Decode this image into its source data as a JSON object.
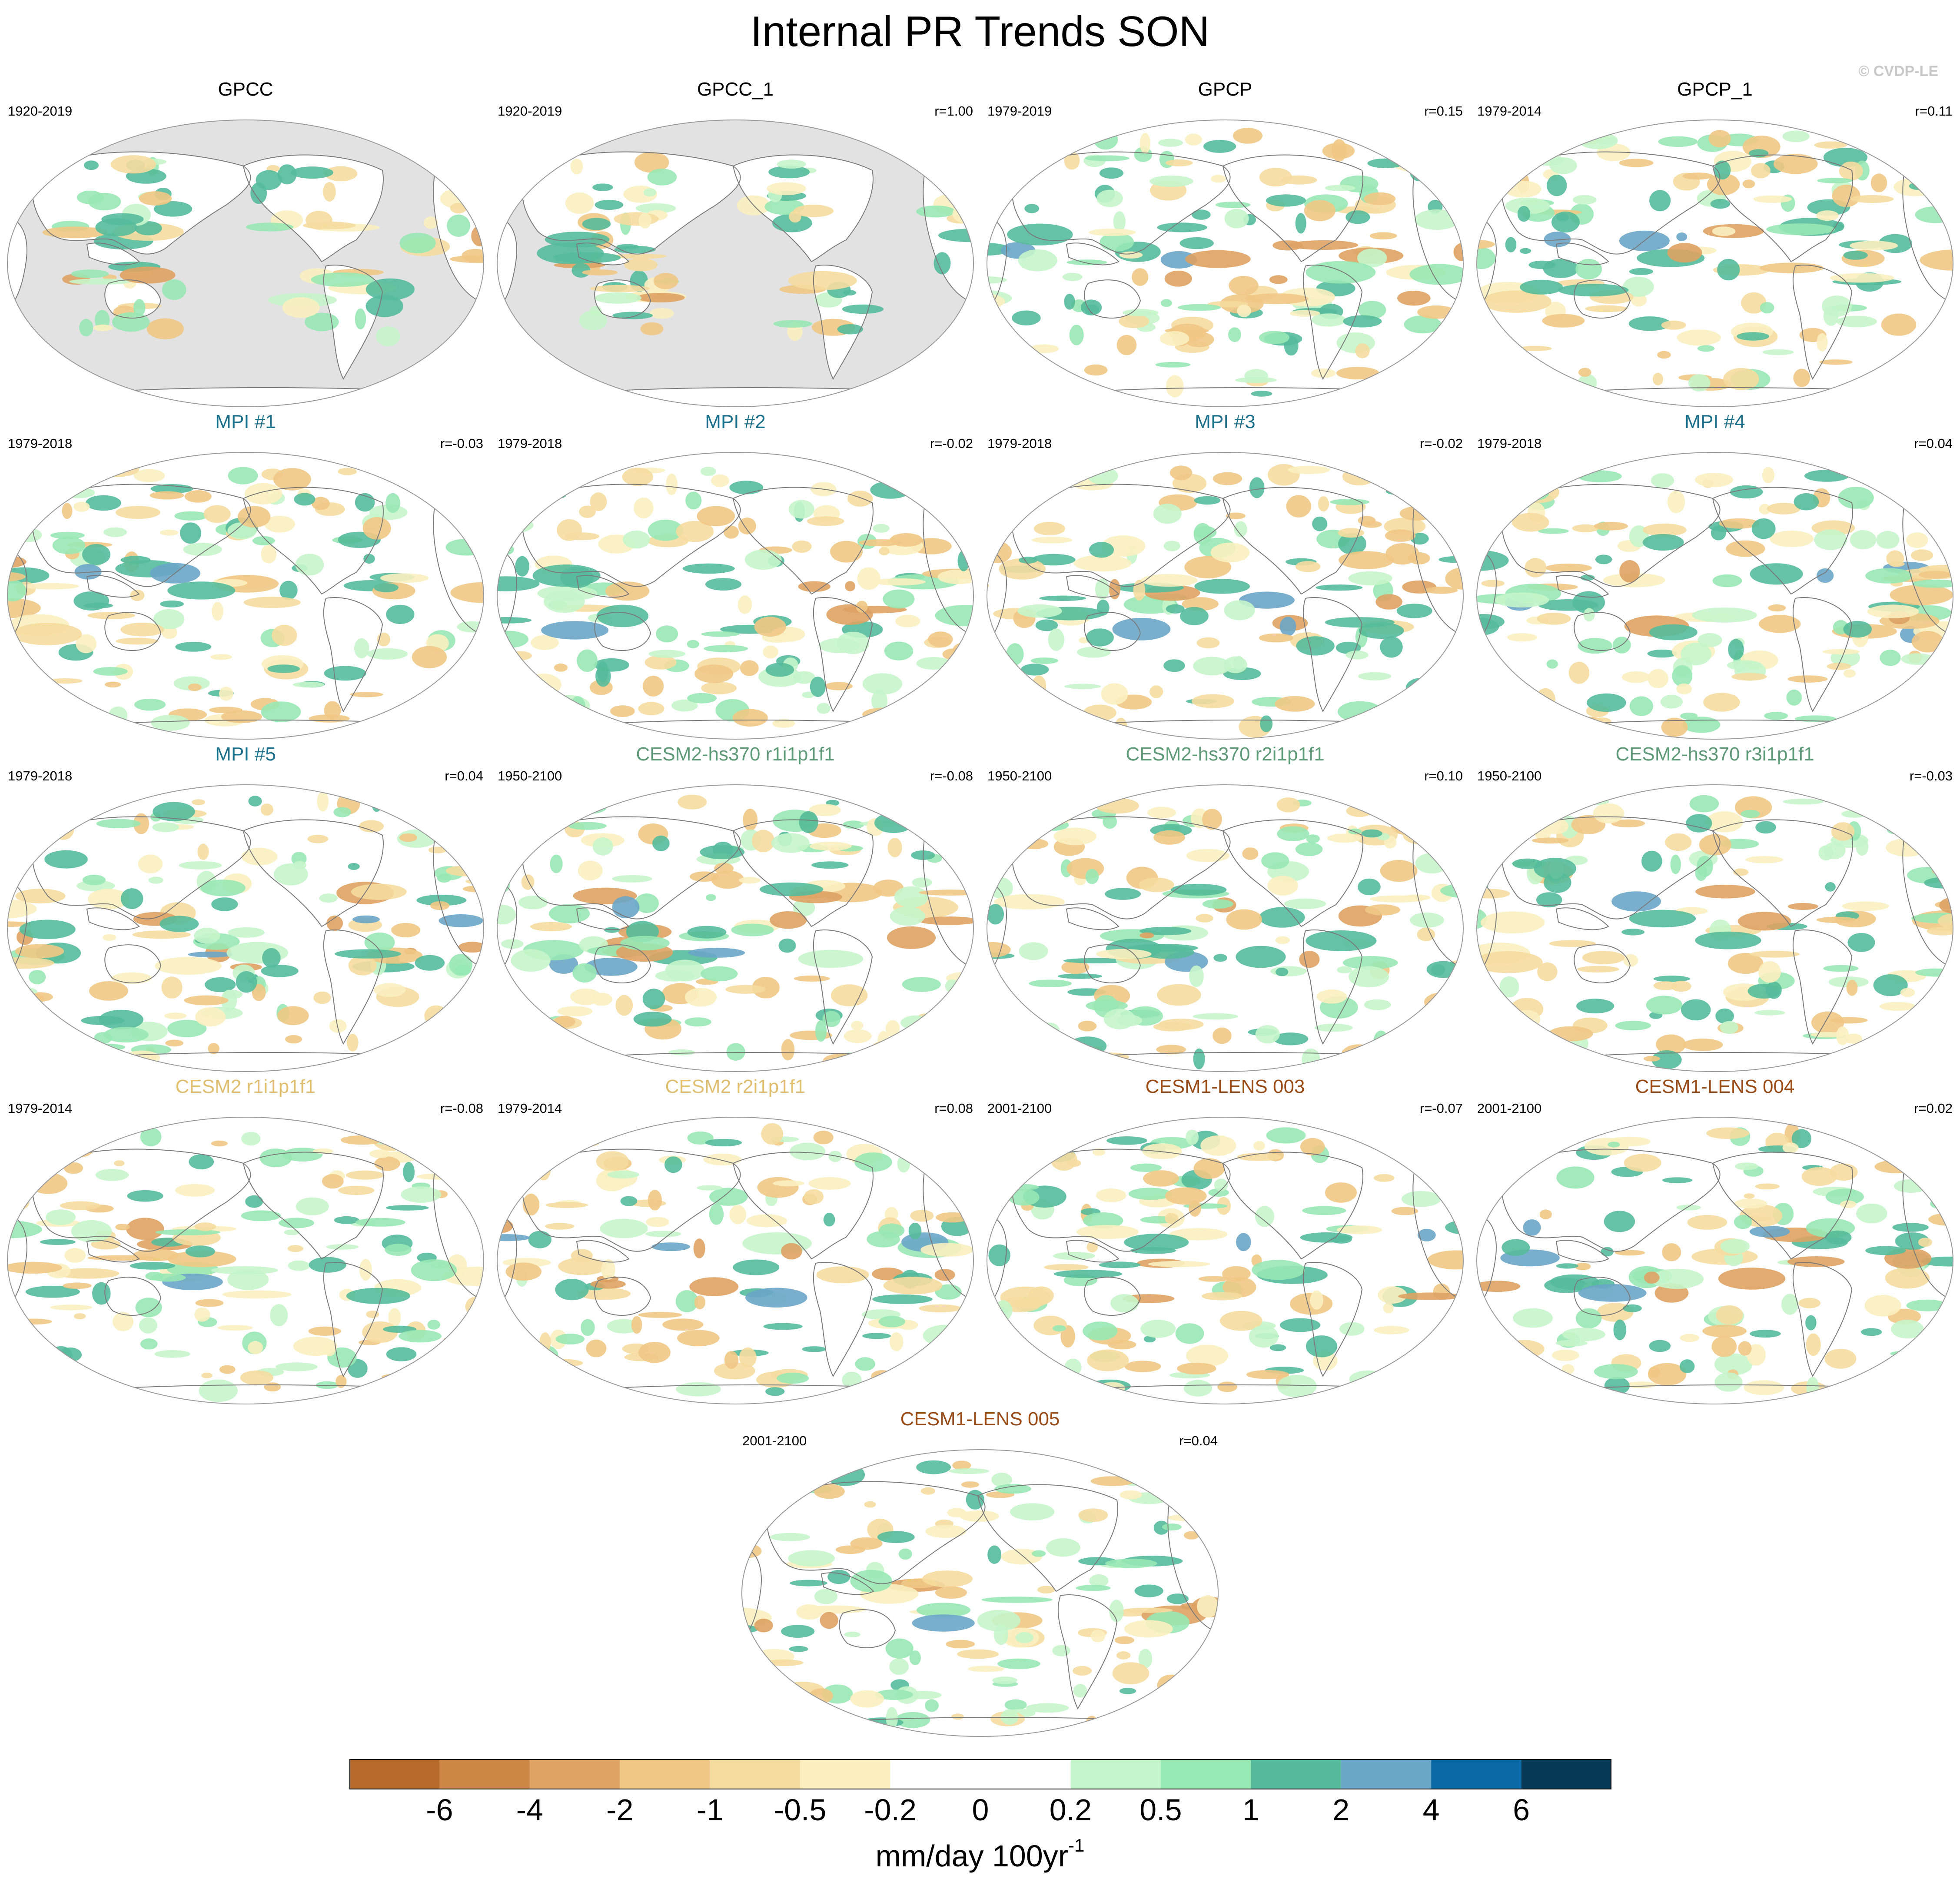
{
  "title": "Internal PR Trends SON",
  "credit": "© CVDP-LE",
  "panels": [
    {
      "title": "GPCC",
      "years": "1920-2019",
      "r": "",
      "title_color": "#000000",
      "land_only": true
    },
    {
      "title": "GPCC_1",
      "years": "1920-2019",
      "r": "r=1.00",
      "title_color": "#000000",
      "land_only": true
    },
    {
      "title": "GPCP",
      "years": "1979-2019",
      "r": "r=0.15",
      "title_color": "#000000",
      "land_only": false
    },
    {
      "title": "GPCP_1",
      "years": "1979-2014",
      "r": "r=0.11",
      "title_color": "#000000",
      "land_only": false
    },
    {
      "title": "MPI #1",
      "years": "1979-2018",
      "r": "r=-0.03",
      "title_color": "#1a6f8a",
      "land_only": false
    },
    {
      "title": "MPI #2",
      "years": "1979-2018",
      "r": "r=-0.02",
      "title_color": "#1a6f8a",
      "land_only": false
    },
    {
      "title": "MPI #3",
      "years": "1979-2018",
      "r": "r=-0.02",
      "title_color": "#1a6f8a",
      "land_only": false
    },
    {
      "title": "MPI #4",
      "years": "1979-2018",
      "r": "r=0.04",
      "title_color": "#1a6f8a",
      "land_only": false
    },
    {
      "title": "MPI #5",
      "years": "1979-2018",
      "r": "r=0.04",
      "title_color": "#1a6f8a",
      "land_only": false
    },
    {
      "title": "CESM2-hs370 r1i1p1f1",
      "years": "1950-2100",
      "r": "r=-0.08",
      "title_color": "#5e9a78",
      "land_only": false
    },
    {
      "title": "CESM2-hs370 r2i1p1f1",
      "years": "1950-2100",
      "r": "r=0.10",
      "title_color": "#5e9a78",
      "land_only": false
    },
    {
      "title": "CESM2-hs370 r3i1p1f1",
      "years": "1950-2100",
      "r": "r=-0.03",
      "title_color": "#5e9a78",
      "land_only": false
    },
    {
      "title": "CESM2 r1i1p1f1",
      "years": "1979-2014",
      "r": "r=-0.08",
      "title_color": "#e0c070",
      "land_only": false
    },
    {
      "title": "CESM2 r2i1p1f1",
      "years": "1979-2014",
      "r": "r=0.08",
      "title_color": "#e0c070",
      "land_only": false
    },
    {
      "title": "CESM1-LENS 003",
      "years": "2001-2100",
      "r": "r=-0.07",
      "title_color": "#9a4a14",
      "land_only": false
    },
    {
      "title": "CESM1-LENS 004",
      "years": "2001-2100",
      "r": "r=0.02",
      "title_color": "#9a4a14",
      "land_only": false
    },
    {
      "title": "CESM1-LENS 005",
      "years": "2001-2100",
      "r": "r=0.04",
      "title_color": "#9a4a14",
      "land_only": false
    }
  ],
  "colorbar": {
    "colors": [
      "#b5692a",
      "#cc8644",
      "#dea263",
      "#f1c885",
      "#f5dc9f",
      "#fbefc0",
      "#ffffff",
      "#ffffff",
      "#c5f5ca",
      "#98e8b4",
      "#55bb9a",
      "#6aa6c8",
      "#0a6aa6",
      "#053955"
    ],
    "ticks": [
      "-6",
      "-4",
      "-2",
      "-1",
      "-0.5",
      "-0.2",
      "0",
      "0.2",
      "0.5",
      "1",
      "2",
      "4",
      "6"
    ],
    "label": "mm/day 100yr",
    "label_superscript": "-1"
  },
  "map_colors": {
    "land_mask": "#e2e2e2",
    "coast": "#7a7a7a",
    "outline": "#9a9a9a"
  }
}
